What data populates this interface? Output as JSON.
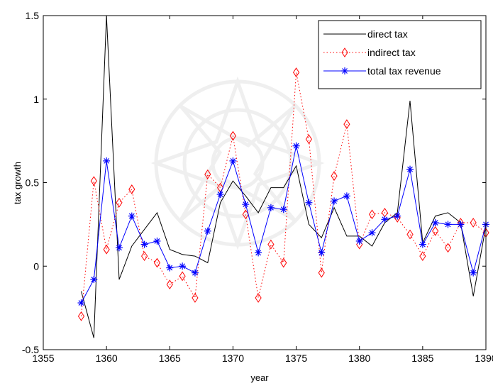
{
  "chart_data": {
    "type": "line",
    "xlabel": "year",
    "ylabel": "tax growth",
    "xlim": [
      1355,
      1390
    ],
    "ylim": [
      -0.5,
      1.5
    ],
    "xticks": [
      1355,
      1360,
      1365,
      1370,
      1375,
      1380,
      1385,
      1390
    ],
    "yticks": [
      -0.5,
      0,
      0.5,
      1,
      1.5
    ],
    "xtick_labels": [
      "1355",
      "1360",
      "1365",
      "1370",
      "1375",
      "1380",
      "1385",
      "1390"
    ],
    "ytick_labels": [
      "-0.5",
      "0",
      "0.5",
      "1",
      "1.5"
    ],
    "grid": false,
    "legend_position": "top-right",
    "x": [
      1358,
      1359,
      1360,
      1361,
      1362,
      1363,
      1364,
      1365,
      1366,
      1367,
      1368,
      1369,
      1370,
      1371,
      1372,
      1373,
      1374,
      1375,
      1376,
      1377,
      1378,
      1379,
      1380,
      1381,
      1382,
      1383,
      1384,
      1385,
      1386,
      1387,
      1388,
      1389,
      1390
    ],
    "series": [
      {
        "name": "direct tax",
        "color": "#000000",
        "style": "solid",
        "marker": "none",
        "values": [
          -0.15,
          -0.43,
          1.5,
          -0.08,
          0.12,
          0.22,
          0.32,
          0.1,
          0.07,
          0.06,
          0.02,
          0.38,
          0.51,
          0.42,
          0.32,
          0.47,
          0.47,
          0.6,
          0.25,
          0.17,
          0.35,
          0.18,
          0.18,
          0.12,
          0.26,
          0.32,
          0.99,
          0.14,
          0.3,
          0.32,
          0.26,
          -0.18,
          0.24
        ]
      },
      {
        "name": "indirect tax",
        "color": "#ff0000",
        "style": "dotted",
        "marker": "diamond",
        "values": [
          -0.3,
          0.51,
          0.1,
          0.38,
          0.46,
          0.06,
          0.02,
          -0.11,
          -0.06,
          -0.19,
          0.55,
          0.47,
          0.78,
          0.31,
          -0.19,
          0.13,
          0.02,
          1.16,
          0.76,
          -0.04,
          0.54,
          0.85,
          0.13,
          0.31,
          0.32,
          0.29,
          0.19,
          0.06,
          0.21,
          0.11,
          0.26,
          0.26,
          0.2
        ]
      },
      {
        "name": "total tax revenue",
        "color": "#0000ff",
        "style": "solid",
        "marker": "asterisk",
        "values": [
          -0.22,
          -0.08,
          0.63,
          0.11,
          0.3,
          0.13,
          0.15,
          -0.01,
          0.0,
          -0.04,
          0.21,
          0.43,
          0.63,
          0.37,
          0.08,
          0.35,
          0.34,
          0.72,
          0.38,
          0.08,
          0.39,
          0.42,
          0.15,
          0.2,
          0.28,
          0.3,
          0.58,
          0.13,
          0.26,
          0.25,
          0.25,
          -0.04,
          0.25
        ]
      }
    ]
  }
}
